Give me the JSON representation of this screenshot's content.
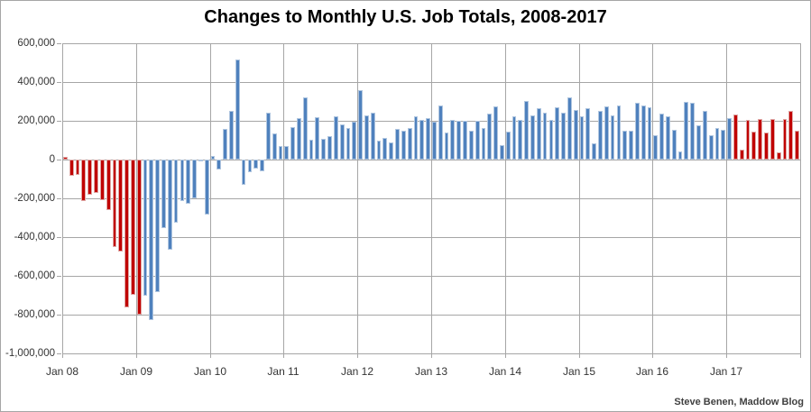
{
  "header": {
    "title": "Changes to Monthly U.S. Job Totals, 2008-2017"
  },
  "footer": {
    "credit": "Steve Benen, Maddow Blog"
  },
  "colors": {
    "bar_red": "#c00000",
    "bar_red_edge": "#dfa6a4",
    "bar_blue": "#4f81bd",
    "bar_blue_edge": "#b0c6e0",
    "gridline": "#a6a6a6",
    "axis_text": "#333333",
    "title_text": "#000000",
    "credit_text": "#404040"
  },
  "chart_data": {
    "type": "bar",
    "title": "Changes to Monthly U.S. Job Totals, 2008-2017",
    "xlabel": "",
    "ylabel": "",
    "start_year": 2008,
    "months_total": 120,
    "grid": true,
    "legend": false,
    "y_axis": {
      "min": -1000000,
      "max": 600000,
      "gridline_step": 200000,
      "tick_labels": [
        "600,000",
        "400,000",
        "200,000",
        "0",
        "-200,000",
        "-400,000",
        "-600,000",
        "-800,000",
        "-1,000,000"
      ]
    },
    "x_axis": {
      "tick_labels": [
        "Jan 08",
        "Jan 09",
        "Jan 10",
        "Jan 11",
        "Jan 12",
        "Jan 13",
        "Jan 14",
        "Jan 15",
        "Jan 16",
        "Jan 17"
      ],
      "months_per_tick": 12
    },
    "series": [
      {
        "name": "red segment (Jan 2008 - Jan 2009)",
        "color_key": "red",
        "start_month_index": 0,
        "values": [
          15000,
          -86000,
          -80000,
          -214000,
          -182000,
          -172000,
          -210000,
          -259000,
          -452000,
          -474000,
          -765000,
          -697000,
          -798000
        ]
      },
      {
        "name": "blue segment (Feb 2009 - Jan 2017)",
        "color_key": "blue",
        "start_month_index": 13,
        "values": [
          -701000,
          -826000,
          -684000,
          -354000,
          -467000,
          -327000,
          -216000,
          -227000,
          -198000,
          -6000,
          -283000,
          18000,
          -50000,
          156000,
          251000,
          516000,
          -130000,
          -65000,
          -45000,
          -60000,
          241000,
          137000,
          71000,
          70000,
          168000,
          212000,
          322000,
          102000,
          217000,
          106000,
          122000,
          221000,
          183000,
          164000,
          196000,
          360000,
          226000,
          243000,
          96000,
          110000,
          88000,
          160000,
          150000,
          161000,
          225000,
          203000,
          214000,
          197000,
          280000,
          141000,
          203000,
          199000,
          201000,
          149000,
          202000,
          164000,
          237000,
          274000,
          75000,
          144000,
          222000,
          203000,
          304000,
          229000,
          267000,
          243000,
          203000,
          271000,
          243000,
          321000,
          256000,
          221000,
          265000,
          84000,
          251000,
          273000,
          228000,
          277000,
          150000,
          149000,
          295000,
          280000,
          271000,
          126000,
          237000,
          225000,
          153000,
          43000,
          297000,
          291000,
          176000,
          249000,
          124000,
          164000,
          155000,
          216000
        ]
      },
      {
        "name": "red segment (Feb 2017 - Dec 2017)",
        "color_key": "red",
        "start_month_index": 109,
        "values": [
          232000,
          50000,
          207000,
          145000,
          210000,
          138000,
          208000,
          38000,
          211000,
          252000,
          148000
        ]
      }
    ]
  }
}
